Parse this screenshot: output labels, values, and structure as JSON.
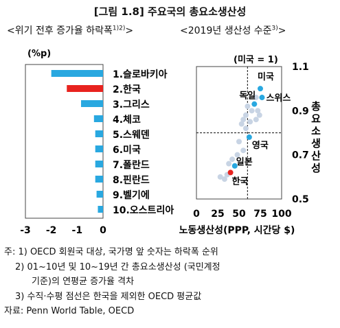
{
  "figure": {
    "title": "[그림 1.8] 주요국의 총요소생산성",
    "left_subtitle": "<위기 전후 증가율 하락폭",
    "left_subtitle_sup": "1)2)",
    "left_subtitle_end": ">",
    "right_subtitle": "<2019년 생산성 수준",
    "right_subtitle_sup": "3)",
    "right_subtitle_end": ">"
  },
  "chart_data": [
    {
      "type": "bar",
      "orientation": "horizontal",
      "unit_label": "(%p)",
      "categories": [
        "1.슬로바키아",
        "2.한국",
        "3.그리스",
        "4.체코",
        "5.스웨덴",
        "6.미국",
        "7.폴란드",
        "8.핀란드",
        "9.벨기에",
        "10.오스트리아"
      ],
      "values": [
        -2.0,
        -1.4,
        -0.85,
        -0.35,
        -0.3,
        -0.3,
        -0.3,
        -0.3,
        -0.25,
        -0.2
      ],
      "highlight_index": 1,
      "xlim": [
        -3,
        0
      ],
      "xticks": [
        "-3",
        "-2",
        "-1",
        "0"
      ],
      "colors": {
        "default": "#29a8e0",
        "highlight": "#e8231f"
      }
    },
    {
      "type": "scatter",
      "xlabel": "노동생산성(PPP, 시간당 $)",
      "ylabel": "총요소생산성",
      "y_annotation": "(미국 = 1)",
      "xlim": [
        0,
        100
      ],
      "ylim": [
        0.5,
        1.1
      ],
      "xticks": [
        "0",
        "25",
        "50",
        "75",
        "100"
      ],
      "yticks": [
        "0.5",
        "0.7",
        "0.9",
        "1.1"
      ],
      "crosshair": {
        "x": 60,
        "y": 0.8
      },
      "labeled_points": [
        {
          "name": "미국",
          "x": 75,
          "y": 1.0,
          "color": "#29a8e0"
        },
        {
          "name": "스위스",
          "x": 77,
          "y": 0.96,
          "color": "#29a8e0"
        },
        {
          "name": "독일",
          "x": 68,
          "y": 0.93,
          "color": "#29a8e0"
        },
        {
          "name": "영국",
          "x": 62,
          "y": 0.78,
          "color": "#29a8e0"
        },
        {
          "name": "일본",
          "x": 45,
          "y": 0.65,
          "color": "#29a8e0"
        },
        {
          "name": "한국",
          "x": 40,
          "y": 0.62,
          "color": "#e8231f"
        }
      ],
      "other_points": [
        {
          "x": 28,
          "y": 0.6
        },
        {
          "x": 33,
          "y": 0.59
        },
        {
          "x": 36,
          "y": 0.61
        },
        {
          "x": 38,
          "y": 0.66
        },
        {
          "x": 42,
          "y": 0.68
        },
        {
          "x": 48,
          "y": 0.7
        },
        {
          "x": 55,
          "y": 0.72
        },
        {
          "x": 50,
          "y": 0.76
        },
        {
          "x": 58,
          "y": 0.82
        },
        {
          "x": 53,
          "y": 0.84
        },
        {
          "x": 63,
          "y": 0.85
        },
        {
          "x": 70,
          "y": 0.86
        },
        {
          "x": 58,
          "y": 0.88
        },
        {
          "x": 65,
          "y": 0.9
        },
        {
          "x": 72,
          "y": 0.9
        },
        {
          "x": 74,
          "y": 0.88
        },
        {
          "x": 70,
          "y": 0.96
        },
        {
          "x": 60,
          "y": 0.92
        },
        {
          "x": 55,
          "y": 0.86
        }
      ],
      "colors": {
        "other": "#c8d4e4"
      }
    }
  ],
  "notes": [
    "주: 1) OECD 회원국 대상, 국가명 앞 숫자는 하락폭 순위",
    "2) 01~10년 및 10~19년 간 총요소생산성 (국민계정",
    "기준)의 연평균 증가율 격차",
    "3) 수직·수평 점선은 한국을 제외한 OECD 평균값",
    "자료: Penn World Table, OECD"
  ]
}
